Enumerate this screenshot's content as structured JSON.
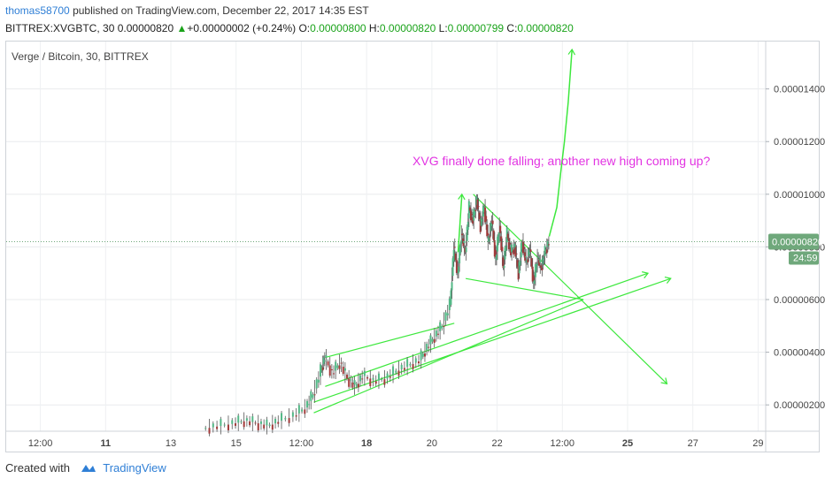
{
  "header": {
    "user": "thomas58700",
    "published": "published on TradingView.com, December 22, 2017 14:35 EST",
    "symbol": "BITTREX:XVGBTC, 30",
    "last": "0.00000820",
    "change": "+0.00000002 (+0.24%)",
    "o_label": "O:",
    "o_value": "0.00000800",
    "h_label": "H:",
    "h_value": "0.00000820",
    "l_label": "L:",
    "l_value": "0.00000799",
    "c_label": "C:",
    "c_value": "0.00000820"
  },
  "colors": {
    "candle_up": "#53b987",
    "candle_down": "#a33b3b",
    "trendline": "#3de83d",
    "annotation": "#e234e2",
    "price_tag": "#6fa87b"
  },
  "footer": {
    "created_with": "Created with",
    "brand": "TradingView",
    "brand_icon": "tradingview-logo-icon"
  },
  "chart_data": {
    "type": "candlestick",
    "title": "Verge / Bitcoin, 30, BITTREX",
    "x_ticks": [
      "12:00",
      "11",
      "13",
      "15",
      "12:00",
      "18",
      "20",
      "22",
      "12:00",
      "25",
      "27",
      "29"
    ],
    "x_ticks_bold": [
      "11",
      "18",
      "25"
    ],
    "y_ticks": [
      2e-06,
      4e-06,
      6e-06,
      8e-06,
      1e-05,
      1.2e-05,
      1.4e-05
    ],
    "y_tick_labels": [
      "0.00000200",
      "0.00000400",
      "0.00000600",
      "0.00000800",
      "0.00001000",
      "0.00001200",
      "0.00001400"
    ],
    "ylim": [
      1e-06,
      1.58e-05
    ],
    "xlim": [
      0,
      100
    ],
    "current_price": 8.2e-06,
    "current_price_label": "0.00000820",
    "countdown": "24:59",
    "annotation": "XVG finally done falling; another new high coming up?",
    "price_path": [
      [
        26.0,
        1.1e-06
      ],
      [
        28.0,
        1.2e-06
      ],
      [
        30.0,
        1.3e-06
      ],
      [
        31.5,
        1.4e-06
      ],
      [
        33.0,
        1.3e-06
      ],
      [
        34.5,
        1.2e-06
      ],
      [
        36.0,
        1.4e-06
      ],
      [
        38.0,
        1.6e-06
      ],
      [
        39.5,
        1.9e-06
      ],
      [
        40.5,
        2.4e-06
      ],
      [
        41.5,
        3.3e-06
      ],
      [
        42.0,
        3.8e-06
      ],
      [
        43.0,
        3.2e-06
      ],
      [
        44.0,
        3.6e-06
      ],
      [
        45.0,
        3e-06
      ],
      [
        46.0,
        2.7e-06
      ],
      [
        47.0,
        3.1e-06
      ],
      [
        48.5,
        2.9e-06
      ],
      [
        50.0,
        3e-06
      ],
      [
        51.5,
        3.3e-06
      ],
      [
        53.0,
        3.5e-06
      ],
      [
        54.5,
        3.7e-06
      ],
      [
        55.5,
        4.2e-06
      ],
      [
        56.5,
        4.6e-06
      ],
      [
        57.5,
        5e-06
      ],
      [
        58.5,
        5.8e-06
      ],
      [
        59.0,
        8e-06
      ],
      [
        59.5,
        7e-06
      ],
      [
        60.0,
        8.5e-06
      ],
      [
        60.5,
        7.8e-06
      ],
      [
        61.0,
        9.5e-06
      ],
      [
        61.5,
        9e-06
      ],
      [
        62.0,
        9.8e-06
      ],
      [
        62.5,
        8.8e-06
      ],
      [
        63.0,
        9.5e-06
      ],
      [
        63.5,
        8.2e-06
      ],
      [
        64.0,
        9e-06
      ],
      [
        64.5,
        7.5e-06
      ],
      [
        65.0,
        8.8e-06
      ],
      [
        65.5,
        7.2e-06
      ],
      [
        66.0,
        8.5e-06
      ],
      [
        66.5,
        7.8e-06
      ],
      [
        67.0,
        8e-06
      ],
      [
        67.5,
        7e-06
      ],
      [
        68.0,
        8.2e-06
      ],
      [
        68.5,
        7.4e-06
      ],
      [
        69.0,
        7.9e-06
      ],
      [
        69.5,
        6.6e-06
      ],
      [
        70.0,
        7.6e-06
      ],
      [
        70.5,
        7.2e-06
      ],
      [
        71.0,
        7.8e-06
      ],
      [
        71.5,
        8.2e-06
      ]
    ],
    "trendlines": [
      {
        "name": "wedge-upper",
        "x1": 42.0,
        "y1": 3.8e-06,
        "x2": 59.0,
        "y2": 5.1e-06
      },
      {
        "name": "rising-support",
        "x1": 40.5,
        "y1": 1.7e-06,
        "x2": 76.0,
        "y2": 6e-06
      },
      {
        "name": "fan-line-1",
        "x1": 40.5,
        "y1": 2.1e-06,
        "x2": 87.5,
        "y2": 6.8e-06
      },
      {
        "name": "fan-line-2",
        "x1": 42.0,
        "y1": 2.7e-06,
        "x2": 84.5,
        "y2": 7e-06
      },
      {
        "name": "triangle-upper",
        "x1": 61.5,
        "y1": 1e-05,
        "x2": 87.0,
        "y2": 2.8e-06
      },
      {
        "name": "triangle-lower",
        "x1": 60.5,
        "y1": 6.8e-06,
        "x2": 76.0,
        "y2": 6e-06
      }
    ],
    "arrows": [
      {
        "name": "spike-arrow",
        "points": [
          [
            59.5,
            7.8e-06
          ],
          [
            60.0,
            1e-05
          ]
        ]
      },
      {
        "name": "projection-arrow",
        "points": [
          [
            71.5,
            8.4e-06
          ],
          [
            72.5,
            9.5e-06
          ],
          [
            73.0,
            1.08e-05
          ],
          [
            73.5,
            1.2e-05
          ],
          [
            74.0,
            1.35e-05
          ],
          [
            74.5,
            1.55e-05
          ]
        ]
      }
    ]
  }
}
